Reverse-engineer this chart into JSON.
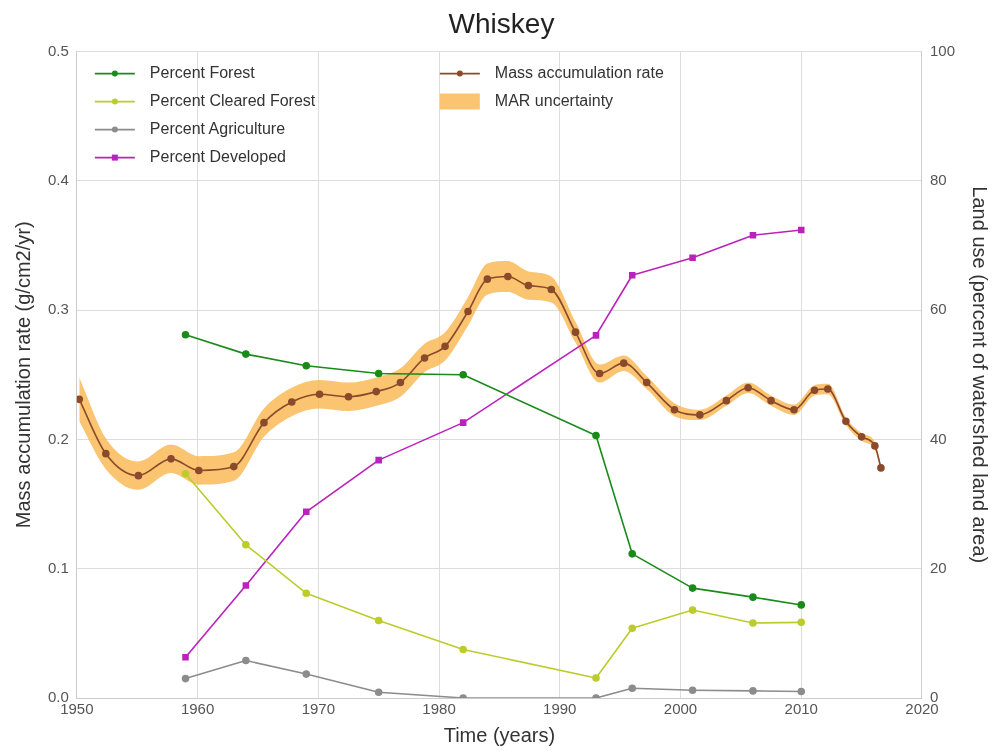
{
  "chart_data": {
    "type": "line",
    "title": "Whiskey",
    "xlabel": "Time (years)",
    "ylabel": "Mass accumulation rate (g/cm2/yr)",
    "y2label": "Land use (percent of watershed land area)",
    "xlim": [
      1950,
      2020
    ],
    "xticks": [
      1950,
      1960,
      1970,
      1980,
      1990,
      2000,
      2010,
      2020
    ],
    "ylim": [
      0,
      0.5
    ],
    "yticks": [
      {
        "value": 0,
        "label": "0.0"
      },
      {
        "value": 0.1,
        "label": "0.1"
      },
      {
        "value": 0.2,
        "label": "0.2"
      },
      {
        "value": 0.3,
        "label": "0.3"
      },
      {
        "value": 0.4,
        "label": "0.4"
      },
      {
        "value": 0.5,
        "label": "0.5"
      }
    ],
    "y2lim": [
      0,
      100
    ],
    "y2ticks": [
      0,
      20,
      40,
      60,
      80,
      100
    ],
    "grid": true,
    "legend": "top left",
    "line_style": "solid",
    "series": [
      {
        "name": "Percent Forest",
        "type": "line",
        "axis": "y2",
        "color": "#1a8a1a",
        "marker": "circle",
        "x": [
          1959,
          1964,
          1969,
          1975,
          1982,
          1993,
          1996,
          2001,
          2006,
          2010
        ],
        "values": [
          56.2,
          53.2,
          51.4,
          50.2,
          50.0,
          40.6,
          22.3,
          17.0,
          15.6,
          14.4
        ]
      },
      {
        "name": "Percent Cleared Forest",
        "type": "line",
        "axis": "y2",
        "color": "#bccc2a",
        "marker": "circle",
        "x": [
          1959,
          1964,
          1969,
          1975,
          1982,
          1993,
          1996,
          2001,
          2006,
          2010
        ],
        "values": [
          34.7,
          23.7,
          16.2,
          12.0,
          7.5,
          3.1,
          10.8,
          13.6,
          11.6,
          11.7
        ]
      },
      {
        "name": "Percent Agriculture",
        "type": "line",
        "axis": "y2",
        "color": "#8c8c8c",
        "marker": "circle",
        "x": [
          1959,
          1964,
          1969,
          1975,
          1982,
          1993,
          1996,
          2001,
          2006,
          2010
        ],
        "values": [
          3.0,
          5.8,
          3.7,
          0.9,
          0,
          0,
          1.5,
          1.2,
          1.1,
          1.0
        ]
      },
      {
        "name": "Percent Developed",
        "type": "line",
        "axis": "y2",
        "color": "#bb22bb",
        "marker": "square",
        "x": [
          1959,
          1964,
          1969,
          1975,
          1982,
          1993,
          1996,
          2001,
          2006,
          2010
        ],
        "values": [
          6.3,
          17.4,
          28.8,
          36.8,
          42.6,
          56.1,
          65.4,
          68.1,
          71.6,
          72.4
        ]
      },
      {
        "name": "Mass accumulation rate",
        "type": "line",
        "axis": "y",
        "color": "#8b4a2b",
        "marker": "circle",
        "x": [
          1950.2,
          1952.4,
          1955.1,
          1957.8,
          1960.1,
          1963.0,
          1965.5,
          1967.8,
          1970.1,
          1972.5,
          1974.8,
          1976.8,
          1978.8,
          1980.5,
          1982.4,
          1984.0,
          1985.7,
          1987.4,
          1989.3,
          1991.3,
          1993.3,
          1995.3,
          1997.2,
          1999.5,
          2001.6,
          2003.8,
          2005.6,
          2007.5,
          2009.4,
          2011.1,
          2012.2,
          2013.7,
          2015.0,
          2016.1,
          2016.6
        ],
        "values": [
          0.231,
          0.189,
          0.172,
          0.185,
          0.176,
          0.179,
          0.213,
          0.229,
          0.235,
          0.233,
          0.237,
          0.244,
          0.263,
          0.272,
          0.299,
          0.324,
          0.326,
          0.319,
          0.316,
          0.283,
          0.251,
          0.259,
          0.244,
          0.223,
          0.219,
          0.23,
          0.24,
          0.23,
          0.223,
          0.238,
          0.239,
          0.214,
          0.202,
          0.195,
          0.178
        ],
        "lower": [
          0.214,
          0.177,
          0.161,
          0.174,
          0.165,
          0.168,
          0.202,
          0.218,
          0.224,
          0.222,
          0.226,
          0.233,
          0.252,
          0.261,
          0.288,
          0.312,
          0.314,
          0.308,
          0.306,
          0.275,
          0.244,
          0.253,
          0.239,
          0.218,
          0.215,
          0.226,
          0.236,
          0.226,
          0.219,
          0.234,
          0.235,
          0.211,
          0.199,
          0.192,
          0.176
        ],
        "upper": [
          0.248,
          0.201,
          0.183,
          0.196,
          0.187,
          0.19,
          0.224,
          0.24,
          0.246,
          0.244,
          0.248,
          0.255,
          0.274,
          0.283,
          0.31,
          0.336,
          0.338,
          0.33,
          0.326,
          0.291,
          0.258,
          0.265,
          0.249,
          0.228,
          0.223,
          0.234,
          0.244,
          0.234,
          0.227,
          0.242,
          0.243,
          0.217,
          0.205,
          0.198,
          0.18
        ]
      },
      {
        "name": "MAR uncertainty",
        "type": "area",
        "color": "#f9b54c"
      }
    ]
  }
}
